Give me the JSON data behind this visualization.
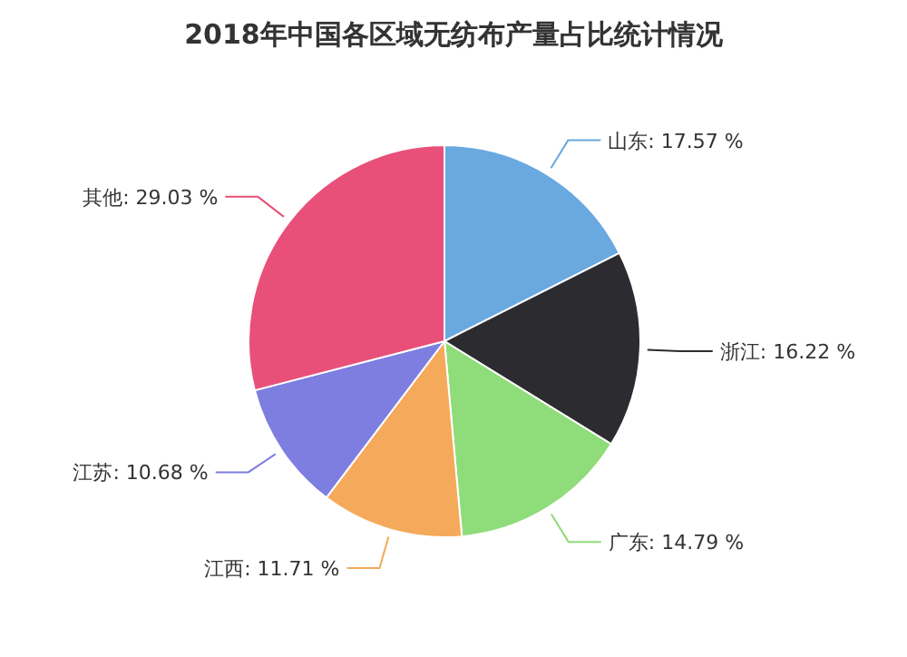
{
  "chart_data": {
    "type": "pie",
    "title": "2018年中国各区域无纺布产量占比统计情况",
    "categories": [
      "山东",
      "浙江",
      "广东",
      "江西",
      "江苏",
      "其他"
    ],
    "values": [
      17.57,
      16.22,
      14.79,
      11.71,
      10.68,
      29.03
    ],
    "value_labels": [
      "17.57 %",
      "16.22 %",
      "14.79 %",
      "11.71 %",
      "10.68 %",
      "29.03 %"
    ],
    "colors": [
      "#6aa8e0",
      "#2b2b30",
      "#8fdc7a",
      "#f5a95a",
      "#7d7ee0",
      "#e8507a"
    ]
  }
}
